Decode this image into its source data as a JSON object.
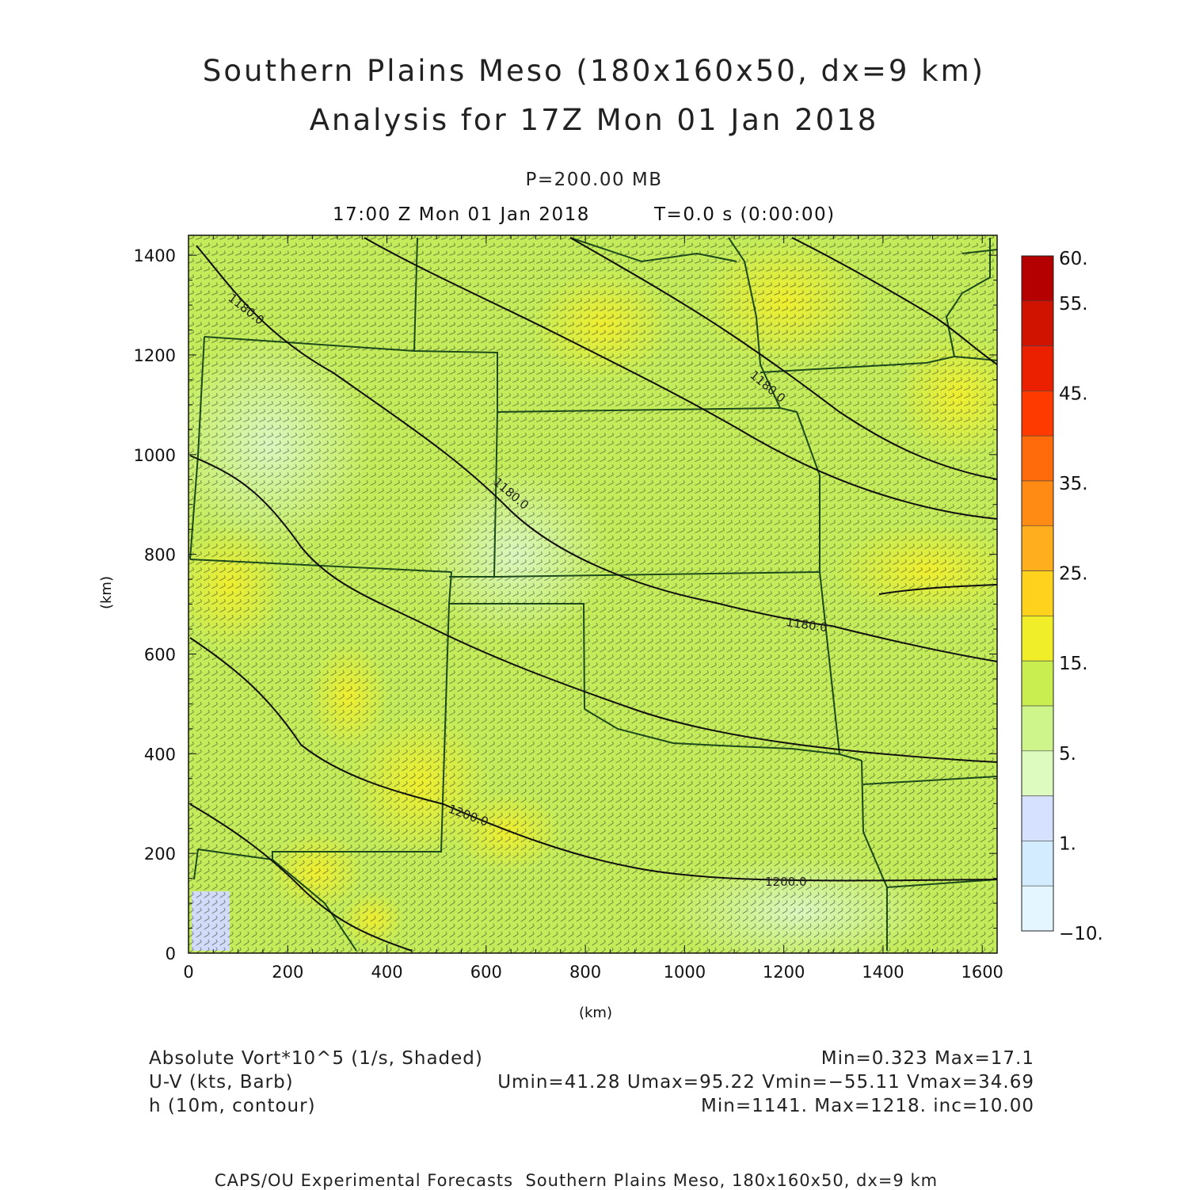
{
  "title_line1": "Southern Plains Meso (180x160x50, dx=9 km)",
  "title_line2": "Analysis for 17Z Mon 01 Jan 2018",
  "pressure_level": "P=200.00 MB",
  "valid_time": "17:00 Z Mon 01 Jan 2018",
  "elapsed": "T=0.0 s (0:00:00)",
  "axis": {
    "xlabel": "(km)",
    "ylabel": "(km)",
    "xlim": [
      0,
      1630
    ],
    "ylim": [
      0,
      1440
    ],
    "xticks": [
      "0",
      "200",
      "400",
      "600",
      "800",
      "1000",
      "1200",
      "1400",
      "1600"
    ],
    "yticks": [
      "0",
      "200",
      "400",
      "600",
      "800",
      "1000",
      "1200",
      "1400"
    ]
  },
  "colorbar": {
    "labels": [
      "60.",
      "55.",
      "45.",
      "35.",
      "25.",
      "15.",
      "5.",
      "1.",
      "−10."
    ],
    "colors": [
      "#b40000",
      "#d01200",
      "#ea2000",
      "#ff3a00",
      "#ff6a0a",
      "#ff8a14",
      "#ffae1e",
      "#ffd21e",
      "#f0ee28",
      "#c8ee50",
      "#cdf58c",
      "#ddfbbe",
      "#d6e0ff",
      "#d4ecff",
      "#e4f6ff"
    ]
  },
  "contour_labels": [
    "1180.0",
    "1180.0",
    "1180.0",
    "1180.0",
    "1200.0",
    "1200.0"
  ],
  "fields": [
    {
      "name": "Absolute Vort*10^5 (1/s, Shaded)",
      "stats": "Min=0.323 Max=17.1"
    },
    {
      "name": "U-V (kts, Barb)",
      "stats": "Umin=41.28 Umax=95.22 Vmin=−55.11 Vmax=34.69"
    },
    {
      "name": "h (10m, contour)",
      "stats": "Min=1141. Max=1218. inc=10.00"
    }
  ],
  "credit": "CAPS/OU Experimental Forecasts  Southern Plains Meso, 180x160x50, dx=9 km"
}
